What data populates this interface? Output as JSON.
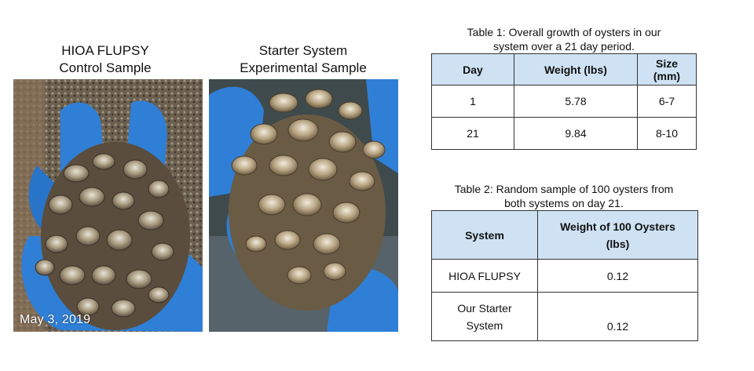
{
  "photos": {
    "left_caption": "HIOA FLUPSY\nControl Sample",
    "right_caption": "Starter System\nExperimental  Sample",
    "date_stamp": "May 3, 2019",
    "glove_color": "#2f7fd6",
    "background_color": "#4a4238"
  },
  "table1": {
    "caption": "Table 1: Overall growth of oysters in our\nsystem over a 21 day period.",
    "headers": [
      "Day",
      "Weight (lbs)",
      "Size (mm)"
    ],
    "rows": [
      [
        "1",
        "5.78",
        "6-7"
      ],
      [
        "21",
        "9.84",
        "8-10"
      ]
    ]
  },
  "table2": {
    "caption": "Table 2: Random sample of 100 oysters from\nboth systems on day 21.",
    "headers": [
      "System",
      "Weight of 100 Oysters\n(lbs)"
    ],
    "rows": [
      [
        "HIOA FLUPSY",
        "0.12"
      ],
      [
        "Our Starter\nSystem",
        "0.12"
      ]
    ]
  },
  "colors": {
    "header_fill": "#cfe2f3",
    "border": "#333333"
  }
}
